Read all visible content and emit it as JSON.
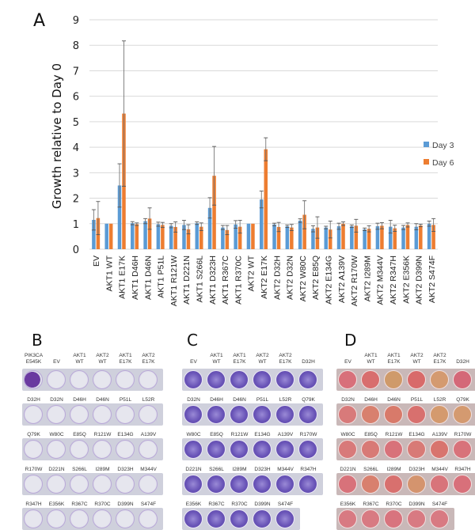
{
  "panels": {
    "A": {
      "letter": "A"
    },
    "B": {
      "letter": "B",
      "stain": "crystal-violet-sparse",
      "rows": [
        [
          "PIK3CA\nE545K",
          "EV",
          "AKT1\nWT",
          "AKT2\nWT",
          "AKT1\nE17K",
          "AKT2\nE17K"
        ],
        [
          "D32H",
          "D32N",
          "D46H",
          "D46N",
          "P51L",
          "L52R"
        ],
        [
          "Q79K",
          "W80C",
          "E85Q",
          "R121W",
          "E134G",
          "A139V"
        ],
        [
          "R170W",
          "D221N",
          "S266L",
          "I289M",
          "D323H",
          "M344V"
        ],
        [
          "R347H",
          "E356K",
          "R367C",
          "R370C",
          "D399N",
          "S474F"
        ]
      ]
    },
    "C": {
      "letter": "C",
      "stain": "crystal-violet-dense",
      "rows": [
        [
          "EV",
          "AKT1\nWT",
          "AKT1\nE17K",
          "AKT2\nWT",
          "AKT2\nE17K",
          "D32H"
        ],
        [
          "D32N",
          "D46H",
          "D46N",
          "P51L",
          "L52R",
          "Q79K"
        ],
        [
          "W80C",
          "E85Q",
          "R121W",
          "E134G",
          "A139V",
          "R170W"
        ],
        [
          "D221N",
          "S266L",
          "I289M",
          "D323H",
          "M344V",
          "R347H"
        ],
        [
          "E356K",
          "R367C",
          "R370C",
          "D399N",
          "S474F"
        ]
      ]
    },
    "D": {
      "letter": "D",
      "stain": "phenol-red-medium",
      "rows": [
        [
          "EV",
          "AKT1\nWT",
          "AKT1\nE17K",
          "AKT2\nWT",
          "AKT2\nE17K",
          "D32H"
        ],
        [
          "D32N",
          "D46H",
          "D46N",
          "P51L",
          "L52R",
          "Q79K"
        ],
        [
          "W80C",
          "E85Q",
          "R121W",
          "E134G",
          "A139V",
          "R170W"
        ],
        [
          "D221N",
          "S266L",
          "I289M",
          "D323H",
          "M344V",
          "R347H"
        ],
        [
          "E356K",
          "R367C",
          "R370C",
          "D399N",
          "S474F"
        ]
      ],
      "well_colors": [
        [
          "#d8707a",
          "#d86e6e",
          "#cf9a6a",
          "#d86a6a",
          "#d49a70",
          "#d46878"
        ],
        [
          "#d87a7a",
          "#d8806e",
          "#d87a6a",
          "#d8706e",
          "#d49a6e",
          "#d49a70"
        ],
        [
          "#d87a7a",
          "#d87a76",
          "#d8727a",
          "#d87a76",
          "#d8746e",
          "#d8727a"
        ],
        [
          "#d8727a",
          "#d8806e",
          "#d8706e",
          "#d4946e",
          "#d8747a",
          "#d8707a"
        ],
        [
          "#d87a82",
          "#d87a82",
          "#d8747e",
          "#d87a82",
          "#d87a82"
        ]
      ]
    }
  },
  "chart_data": {
    "type": "bar",
    "title": "",
    "xlabel": "",
    "ylabel": "Growth relative to Day 0",
    "ylim": [
      0,
      9
    ],
    "yticks": [
      "0",
      "1",
      "2",
      "3",
      "4",
      "5",
      "6",
      "7",
      "8",
      "9"
    ],
    "grid": true,
    "legend": "right",
    "categories": [
      "EV",
      "AKT1 WT",
      "AKT1 E17K",
      "AKT1 D46H",
      "AKT1 D46N",
      "AKT1 P51L",
      "AKT1 R121W",
      "AKT1 D221N",
      "AKT1 S266L",
      "AKT1 D323H",
      "AKT1 R367C",
      "AKT1 R370C",
      "AKT2 WT",
      "AKT2 E17K",
      "AKT2 D32H",
      "AKT2 D32N",
      "AKT2 W80C",
      "AKT2 E85Q",
      "AKT2 E134G",
      "AKT2 A139V",
      "AKT2 R170W",
      "AKT2 I289M",
      "AKT2 M344V",
      "AKT2 R347H",
      "AKT2 E356K",
      "AKT2 D399N",
      "AKT2 S474F"
    ],
    "series": [
      {
        "name": "Day 3",
        "color": "#5b9bd5",
        "values": [
          1.15,
          1.0,
          2.5,
          1.02,
          1.1,
          0.98,
          0.92,
          0.95,
          1.02,
          1.62,
          0.85,
          0.97,
          1.0,
          1.95,
          0.97,
          0.9,
          1.12,
          0.8,
          0.85,
          0.9,
          0.9,
          0.78,
          0.9,
          0.88,
          0.85,
          0.88,
          1.0
        ],
        "errors": [
          0.4,
          0.0,
          0.85,
          0.06,
          0.1,
          0.08,
          0.08,
          0.18,
          0.05,
          0.4,
          0.08,
          0.15,
          0.0,
          0.33,
          0.05,
          0.05,
          0.07,
          0.12,
          0.05,
          0.12,
          0.05,
          0.05,
          0.12,
          0.25,
          0.08,
          0.12,
          0.1
        ]
      },
      {
        "name": "Day 6",
        "color": "#ed7d31",
        "values": [
          1.22,
          1.0,
          5.32,
          0.98,
          1.2,
          0.95,
          0.87,
          0.78,
          0.88,
          2.88,
          0.75,
          0.88,
          1.0,
          3.92,
          0.87,
          0.85,
          1.35,
          0.85,
          0.77,
          1.0,
          0.92,
          0.8,
          0.92,
          0.82,
          0.95,
          0.93,
          0.95
        ],
        "errors": [
          0.65,
          0.0,
          2.85,
          0.05,
          0.42,
          0.1,
          0.2,
          0.18,
          0.15,
          1.15,
          0.18,
          0.25,
          0.0,
          0.45,
          0.18,
          0.12,
          0.55,
          0.42,
          0.33,
          0.07,
          0.25,
          0.12,
          0.12,
          0.12,
          0.08,
          0.05,
          0.25
        ]
      }
    ]
  }
}
